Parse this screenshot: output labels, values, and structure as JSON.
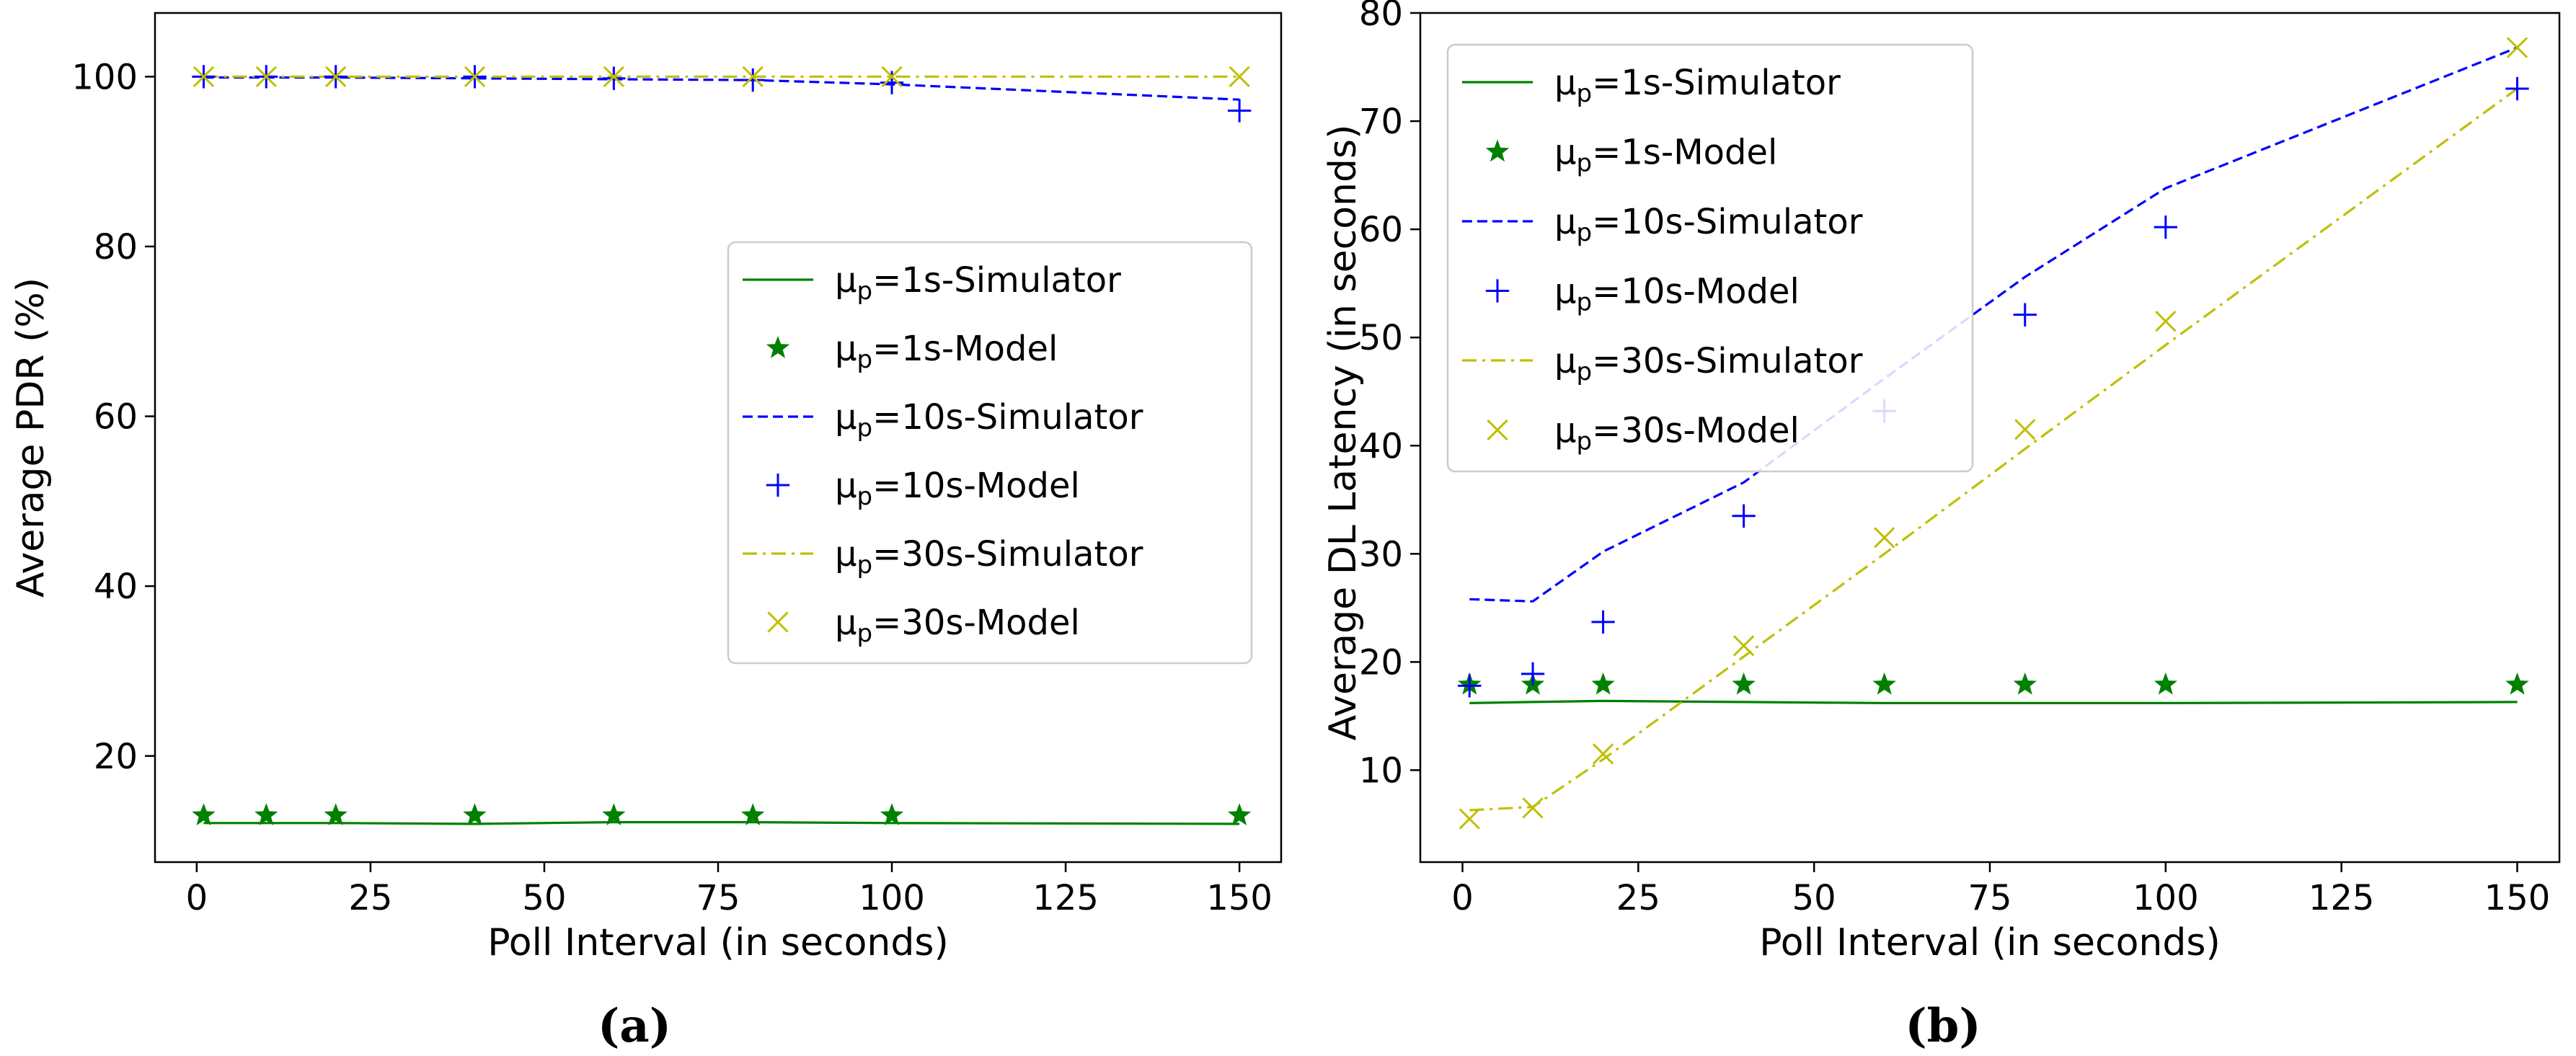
{
  "chart_data": [
    {
      "type": "line",
      "panel_label": "(a)",
      "xlabel": "Poll Interval (in seconds)",
      "ylabel": "Average PDR (%)",
      "xlim": [
        -6,
        156
      ],
      "ylim": [
        7.5,
        107.5
      ],
      "xticks": [
        "0",
        "25",
        "50",
        "75",
        "100",
        "125",
        "150"
      ],
      "yticks": [
        "20",
        "40",
        "60",
        "80",
        "100"
      ],
      "legend_position": "center-right",
      "x": [
        1,
        10,
        20,
        40,
        60,
        80,
        100,
        150
      ],
      "series": [
        {
          "name_prefix": "μ",
          "name_sub": "p",
          "name_suffix": "=1s-Simulator",
          "kind": "line",
          "dash": "solid",
          "color": "#008000",
          "values": [
            12.1,
            12.1,
            12.1,
            12.0,
            12.2,
            12.2,
            12.1,
            12.0
          ]
        },
        {
          "name_prefix": "μ",
          "name_sub": "p",
          "name_suffix": "=1s-Model",
          "kind": "marker",
          "marker": "star",
          "color": "#008000",
          "values": [
            13.0,
            13.0,
            13.0,
            13.0,
            13.0,
            13.0,
            13.0,
            13.0
          ]
        },
        {
          "name_prefix": "μ",
          "name_sub": "p",
          "name_suffix": "=10s-Simulator",
          "kind": "line",
          "dash": "dashed",
          "color": "#0000ff",
          "values": [
            99.9,
            99.9,
            99.9,
            99.8,
            99.7,
            99.6,
            99.1,
            97.3
          ]
        },
        {
          "name_prefix": "μ",
          "name_sub": "p",
          "name_suffix": "=10s-Model",
          "kind": "marker",
          "marker": "plus",
          "color": "#0000ff",
          "values": [
            100.0,
            100.0,
            100.0,
            100.0,
            99.8,
            99.6,
            99.3,
            96.0
          ]
        },
        {
          "name_prefix": "μ",
          "name_sub": "p",
          "name_suffix": "=30s-Simulator",
          "kind": "line",
          "dash": "dashdot",
          "color": "#bfbf00",
          "values": [
            100.0,
            100.0,
            100.0,
            100.0,
            100.0,
            100.0,
            100.0,
            100.0
          ]
        },
        {
          "name_prefix": "μ",
          "name_sub": "p",
          "name_suffix": "=30s-Model",
          "kind": "marker",
          "marker": "x",
          "color": "#bfbf00",
          "values": [
            100.0,
            100.0,
            100.0,
            100.0,
            100.0,
            100.0,
            100.0,
            100.0
          ]
        }
      ]
    },
    {
      "type": "line",
      "panel_label": "(b)",
      "xlabel": "Poll Interval (in seconds)",
      "ylabel": "Average DL Latency (in seconds)",
      "xlim": [
        -6,
        156
      ],
      "ylim": [
        1.5,
        80
      ],
      "xticks": [
        "0",
        "25",
        "50",
        "75",
        "100",
        "125",
        "150"
      ],
      "yticks": [
        "10",
        "20",
        "30",
        "40",
        "50",
        "60",
        "70",
        "80"
      ],
      "legend_position": "upper-left",
      "x": [
        1,
        10,
        20,
        40,
        60,
        80,
        100,
        150
      ],
      "series": [
        {
          "name_prefix": "μ",
          "name_sub": "p",
          "name_suffix": "=1s-Simulator",
          "kind": "line",
          "dash": "solid",
          "color": "#008000",
          "values": [
            16.2,
            16.3,
            16.4,
            16.3,
            16.2,
            16.2,
            16.2,
            16.3
          ]
        },
        {
          "name_prefix": "μ",
          "name_sub": "p",
          "name_suffix": "=1s-Model",
          "kind": "marker",
          "marker": "star",
          "color": "#008000",
          "values": [
            17.9,
            17.9,
            17.9,
            17.9,
            17.9,
            17.9,
            17.9,
            17.9
          ]
        },
        {
          "name_prefix": "μ",
          "name_sub": "p",
          "name_suffix": "=10s-Simulator",
          "kind": "line",
          "dash": "dashed",
          "color": "#0000ff",
          "values": [
            25.8,
            25.6,
            30.2,
            36.6,
            46.2,
            55.6,
            63.8,
            76.8
          ]
        },
        {
          "name_prefix": "μ",
          "name_sub": "p",
          "name_suffix": "=10s-Model",
          "kind": "marker",
          "marker": "plus",
          "color": "#0000ff",
          "values": [
            17.8,
            18.9,
            23.7,
            33.5,
            43.2,
            52.1,
            60.2,
            73.0
          ]
        },
        {
          "name_prefix": "μ",
          "name_sub": "p",
          "name_suffix": "=30s-Simulator",
          "kind": "line",
          "dash": "dashdot",
          "color": "#bfbf00",
          "values": [
            6.3,
            6.6,
            11.0,
            20.5,
            30.0,
            39.7,
            49.3,
            73.0
          ]
        },
        {
          "name_prefix": "μ",
          "name_sub": "p",
          "name_suffix": "=30s-Model",
          "kind": "marker",
          "marker": "x",
          "color": "#bfbf00",
          "values": [
            5.5,
            6.5,
            11.5,
            21.5,
            31.5,
            41.5,
            51.5,
            76.8
          ]
        }
      ]
    }
  ]
}
